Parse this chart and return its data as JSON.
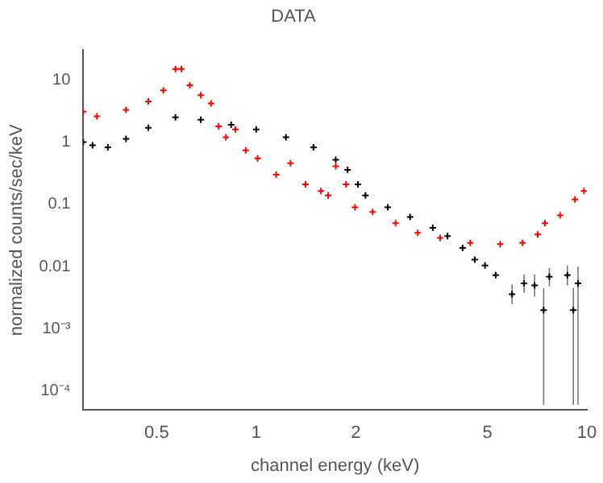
{
  "chart_data": {
    "type": "scatter",
    "title": "DATA",
    "xlabel": "channel energy (keV)",
    "ylabel": "normalized counts/sec/keV",
    "log": "xy",
    "grid": false,
    "legend": false,
    "marker": "cross",
    "xlim": [
      0.3,
      10
    ],
    "xticks": [
      0.5,
      1,
      2,
      5,
      10
    ],
    "ylim": [
      5e-05,
      30
    ],
    "yticks": [
      {
        "value": 0.0001,
        "label": "10⁻⁴"
      },
      {
        "value": 0.001,
        "label": "10⁻³"
      },
      0.01,
      0.1,
      1,
      10
    ],
    "series": [
      {
        "color": "#ff0000",
        "x": [
          0.3,
          0.33,
          0.404,
          0.472,
          0.524,
          0.57,
          0.594,
          0.63,
          0.68,
          0.73,
          0.77,
          0.81,
          0.865,
          0.93,
          1.01,
          1.15,
          1.27,
          1.41,
          1.57,
          1.65,
          1.74,
          1.87,
          1.99,
          2.25,
          2.64,
          3.08,
          3.6,
          4.44,
          5.47,
          6.39,
          7.1,
          7.47,
          8.3,
          9.2,
          9.8
        ],
        "values": [
          3.1,
          2.6,
          3.3,
          4.5,
          6.8,
          15,
          15,
          8.2,
          5.7,
          4.2,
          1.8,
          1.2,
          1.6,
          0.74,
          0.55,
          0.3,
          0.46,
          0.21,
          0.165,
          0.14,
          0.41,
          0.21,
          0.09,
          0.076,
          0.05,
          0.035,
          0.029,
          0.024,
          0.023,
          0.024,
          0.033,
          0.05,
          0.067,
          0.12,
          0.165
        ]
      },
      {
        "color": "#000000",
        "x": [
          0.3,
          0.32,
          0.356,
          0.404,
          0.472,
          0.57,
          0.68,
          0.84,
          1.0,
          1.23,
          1.49,
          1.74,
          1.89,
          2.03,
          2.14,
          2.5,
          2.92,
          3.42,
          3.79,
          4.21,
          4.58,
          4.92,
          5.3,
          5.94,
          6.46,
          6.95,
          7.4,
          7.7,
          8.73,
          9.1,
          9.4
        ],
        "values": [
          1.0,
          0.89,
          0.83,
          1.13,
          1.7,
          2.5,
          2.3,
          1.9,
          1.6,
          1.2,
          0.83,
          0.52,
          0.36,
          0.21,
          0.14,
          0.09,
          0.063,
          0.042,
          0.031,
          0.02,
          0.013,
          0.0105,
          0.0073,
          0.0036,
          0.0054,
          0.005,
          0.002,
          0.0069,
          0.0073,
          0.002,
          0.0054
        ],
        "errors": [
          null,
          null,
          null,
          null,
          null,
          null,
          null,
          null,
          null,
          null,
          null,
          null,
          null,
          null,
          null,
          null,
          null,
          null,
          null,
          null,
          null,
          null,
          null,
          [
            0.0025,
            0.0052
          ],
          [
            0.0038,
            0.0075
          ],
          [
            0.0033,
            0.0075
          ],
          [
            6e-05,
            0.0045
          ],
          [
            0.0048,
            0.0095
          ],
          [
            0.005,
            0.0105
          ],
          [
            6e-05,
            0.0045
          ],
          [
            6e-05,
            0.01
          ]
        ]
      }
    ]
  }
}
